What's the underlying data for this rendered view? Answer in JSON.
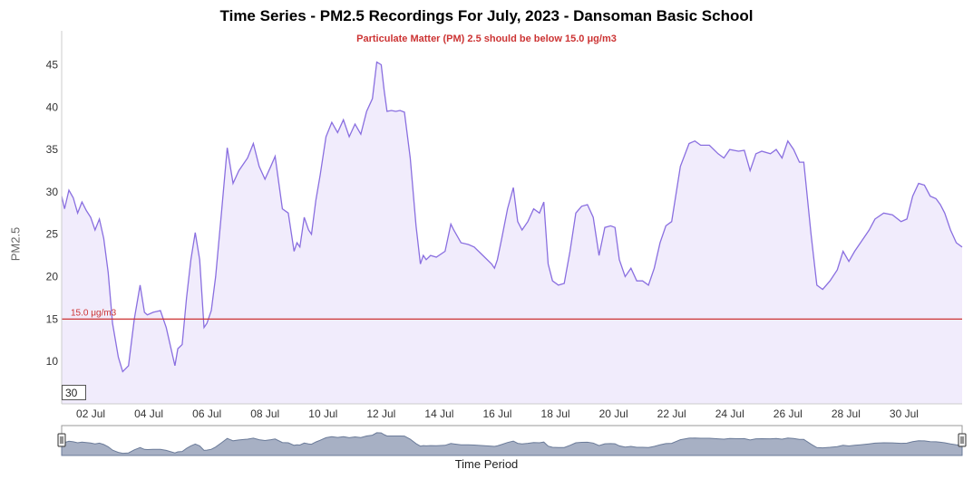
{
  "theme": {
    "line": "#8a6fe0",
    "fill": "#f1ecfc",
    "threshold": "#cc3333",
    "navigator_fill": "#a7b0c4",
    "navigator_line": "#6b7b99"
  },
  "range_selector": {
    "value": "30"
  },
  "chart_data": {
    "type": "area",
    "title": "Time Series - PM2.5 Recordings For July, 2023 - Dansoman Basic School",
    "subtitle": "Particulate Matter (PM) 2.5 should be below 15.0 μg/m3",
    "xlabel": "Time Period",
    "ylabel": "PM2.5",
    "xlim": [
      1.0,
      32.0
    ],
    "ylim": [
      5,
      49
    ],
    "y_ticks": [
      10,
      15,
      20,
      25,
      30,
      35,
      40,
      45
    ],
    "x_ticks": [
      {
        "value": 2,
        "label": "02 Jul"
      },
      {
        "value": 4,
        "label": "04 Jul"
      },
      {
        "value": 6,
        "label": "06 Jul"
      },
      {
        "value": 8,
        "label": "08 Jul"
      },
      {
        "value": 10,
        "label": "10 Jul"
      },
      {
        "value": 12,
        "label": "12 Jul"
      },
      {
        "value": 14,
        "label": "14 Jul"
      },
      {
        "value": 16,
        "label": "16 Jul"
      },
      {
        "value": 18,
        "label": "18 Jul"
      },
      {
        "value": 20,
        "label": "20 Jul"
      },
      {
        "value": 22,
        "label": "22 Jul"
      },
      {
        "value": 24,
        "label": "24 Jul"
      },
      {
        "value": 26,
        "label": "26 Jul"
      },
      {
        "value": 28,
        "label": "28 Jul"
      },
      {
        "value": 30,
        "label": "30 Jul"
      }
    ],
    "threshold": {
      "value": 15.0,
      "label": "15.0 μg/m3"
    },
    "grid": false,
    "x": [
      1.0,
      1.1,
      1.25,
      1.4,
      1.55,
      1.7,
      1.85,
      2.0,
      2.15,
      2.3,
      2.45,
      2.6,
      2.75,
      2.95,
      3.1,
      3.3,
      3.5,
      3.7,
      3.85,
      3.95,
      4.15,
      4.4,
      4.6,
      4.9,
      5.0,
      5.15,
      5.3,
      5.45,
      5.6,
      5.75,
      5.9,
      6.0,
      6.15,
      6.3,
      6.5,
      6.7,
      6.9,
      7.1,
      7.3,
      7.4,
      7.6,
      7.8,
      8.0,
      8.2,
      8.35,
      8.6,
      8.8,
      9.0,
      9.1,
      9.2,
      9.35,
      9.5,
      9.6,
      9.75,
      9.9,
      10.1,
      10.3,
      10.5,
      10.7,
      10.9,
      11.1,
      11.3,
      11.5,
      11.7,
      11.85,
      12.0,
      12.1,
      12.2,
      12.35,
      12.5,
      12.65,
      12.8,
      13.0,
      13.2,
      13.35,
      13.45,
      13.55,
      13.7,
      13.9,
      14.2,
      14.4,
      14.5,
      14.75,
      15.0,
      15.2,
      15.5,
      15.8,
      15.9,
      16.0,
      16.15,
      16.35,
      16.55,
      16.7,
      16.85,
      17.05,
      17.25,
      17.45,
      17.6,
      17.75,
      17.9,
      18.1,
      18.3,
      18.5,
      18.7,
      18.9,
      19.1,
      19.3,
      19.5,
      19.7,
      19.9,
      20.05,
      20.2,
      20.4,
      20.6,
      20.8,
      21.0,
      21.2,
      21.4,
      21.6,
      21.8,
      22.0,
      22.3,
      22.6,
      22.8,
      23.0,
      23.3,
      23.6,
      23.8,
      24.0,
      24.3,
      24.5,
      24.7,
      24.9,
      25.1,
      25.4,
      25.6,
      25.8,
      26.0,
      26.2,
      26.4,
      26.55,
      26.8,
      27.0,
      27.2,
      27.45,
      27.7,
      27.9,
      28.1,
      28.3,
      28.5,
      28.8,
      29.0,
      29.3,
      29.6,
      29.9,
      30.1,
      30.3,
      30.5,
      30.7,
      30.9,
      31.1,
      31.25,
      31.4,
      31.6,
      31.8,
      32.0
    ],
    "y": [
      29.5,
      28.0,
      30.2,
      29.3,
      27.5,
      28.8,
      27.8,
      27.0,
      25.5,
      26.8,
      24.5,
      20.5,
      14.5,
      10.5,
      8.8,
      9.5,
      15.0,
      19.0,
      15.8,
      15.5,
      15.8,
      16.0,
      14.0,
      9.5,
      11.5,
      12.0,
      17.5,
      22.0,
      25.2,
      22.0,
      14.0,
      14.5,
      16.0,
      20.0,
      27.5,
      35.2,
      31.0,
      32.5,
      33.5,
      34.0,
      35.7,
      33.0,
      31.5,
      33.0,
      34.2,
      28.0,
      27.5,
      23.0,
      24.0,
      23.5,
      27.0,
      25.5,
      25.0,
      29.0,
      32.0,
      36.5,
      38.2,
      37.0,
      38.5,
      36.5,
      38.0,
      36.8,
      39.5,
      41.0,
      45.3,
      45.0,
      42.0,
      39.5,
      39.6,
      39.5,
      39.6,
      39.4,
      34.0,
      26.0,
      21.5,
      22.5,
      22.0,
      22.5,
      22.3,
      23.0,
      26.2,
      25.5,
      24.0,
      23.8,
      23.5,
      22.5,
      21.5,
      21.0,
      22.0,
      24.5,
      28.0,
      30.5,
      26.5,
      25.5,
      26.5,
      28.0,
      27.5,
      28.8,
      21.5,
      19.5,
      19.0,
      19.2,
      23.0,
      27.5,
      28.3,
      28.5,
      27.0,
      22.5,
      25.8,
      26.0,
      25.8,
      22.0,
      20.0,
      21.0,
      19.5,
      19.5,
      19.0,
      21.0,
      24.0,
      26.0,
      26.5,
      33.0,
      35.7,
      36.0,
      35.5,
      35.5,
      34.5,
      34.0,
      35.0,
      34.8,
      34.9,
      32.5,
      34.5,
      34.8,
      34.5,
      35.0,
      34.0,
      36.0,
      35.0,
      33.5,
      33.5,
      25.0,
      19.0,
      18.5,
      19.5,
      20.8,
      23.0,
      21.8,
      23.0,
      24.0,
      25.5,
      26.8,
      27.5,
      27.3,
      26.5,
      26.8,
      29.5,
      31.0,
      30.8,
      29.5,
      29.2,
      28.5,
      27.5,
      25.5,
      24.0,
      23.5
    ]
  }
}
